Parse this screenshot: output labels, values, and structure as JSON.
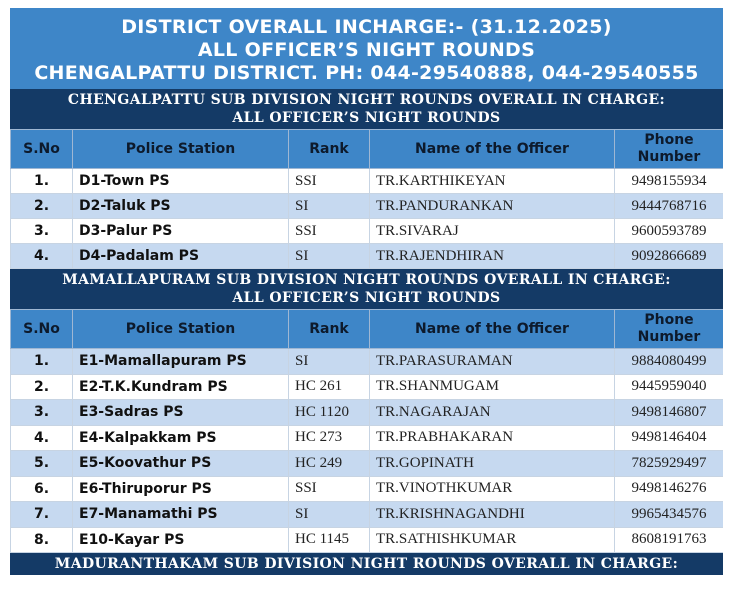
{
  "title": {
    "line1": "DISTRICT OVERALL INCHARGE:- (31.12.2025)",
    "line2": "ALL OFFICER’S NIGHT ROUNDS",
    "line3": "CHENGALPATTU DISTRICT. PH: 044-29540888, 044-29540555"
  },
  "columns": {
    "sno": "S.No",
    "station": "Police Station",
    "rank": "Rank",
    "officer": "Name of the Officer",
    "phone_line1": "Phone",
    "phone_line2": "Number"
  },
  "sections": [
    {
      "heading_line1": "CHENGALPATTU SUB DIVISION NIGHT ROUNDS OVERALL IN CHARGE:",
      "heading_line2": "ALL OFFICER’S NIGHT ROUNDS",
      "rows": [
        {
          "sno": "1.",
          "station": "D1-Town PS",
          "rank": "SSI",
          "officer": "TR.KARTHIKEYAN",
          "phone": "9498155934"
        },
        {
          "sno": "2.",
          "station": "D2-Taluk PS",
          "rank": "SI",
          "officer": "TR.PANDURANKAN",
          "phone": "9444768716"
        },
        {
          "sno": "3.",
          "station": "D3-Palur PS",
          "rank": "SSI",
          "officer": "TR.SIVARAJ",
          "phone": "9600593789"
        },
        {
          "sno": "4.",
          "station": "D4-Padalam PS",
          "rank": "SI",
          "officer": "TR.RAJENDHIRAN",
          "phone": "9092866689"
        }
      ]
    },
    {
      "heading_line1": "MAMALLAPURAM SUB DIVISION NIGHT ROUNDS OVERALL IN CHARGE:",
      "heading_line2": "ALL OFFICER’S NIGHT ROUNDS",
      "rows": [
        {
          "sno": "1.",
          "station": "E1-Mamallapuram PS",
          "rank": "SI",
          "officer": "TR.PARASURAMAN",
          "phone": "9884080499"
        },
        {
          "sno": "2.",
          "station": "E2-T.K.Kundram PS",
          "rank": "HC 261",
          "officer": "TR.SHANMUGAM",
          "phone": "9445959040"
        },
        {
          "sno": "3.",
          "station": "E3-Sadras PS",
          "rank": "HC 1120",
          "officer": "TR.NAGARAJAN",
          "phone": "9498146807"
        },
        {
          "sno": "4.",
          "station": "E4-Kalpakkam PS",
          "rank": "HC 273",
          "officer": "TR.PRABHAKARAN",
          "phone": "9498146404"
        },
        {
          "sno": "5.",
          "station": "E5-Koovathur PS",
          "rank": "HC 249",
          "officer": "TR.GOPINATH",
          "phone": "7825929497"
        },
        {
          "sno": "6.",
          "station": "E6-Thiruporur PS",
          "rank": "SSI",
          "officer": "TR.VINOTHKUMAR",
          "phone": "9498146276"
        },
        {
          "sno": "7.",
          "station": "E7-Manamathi PS",
          "rank": "SI",
          "officer": "TR.KRISHNAGANDHI",
          "phone": "9965434576"
        },
        {
          "sno": "8.",
          "station": "E10-Kayar PS",
          "rank": "HC 1145",
          "officer": "TR.SATHISHKUMAR",
          "phone": "8608191763"
        }
      ]
    },
    {
      "heading_line1": "MADURANTHAKAM SUB DIVISION NIGHT ROUNDS OVERALL IN CHARGE:"
    }
  ],
  "colors": {
    "title_bg": "#3e86c8",
    "section_bg": "#143a66",
    "row_alt_bg": "#c6d9f0"
  }
}
